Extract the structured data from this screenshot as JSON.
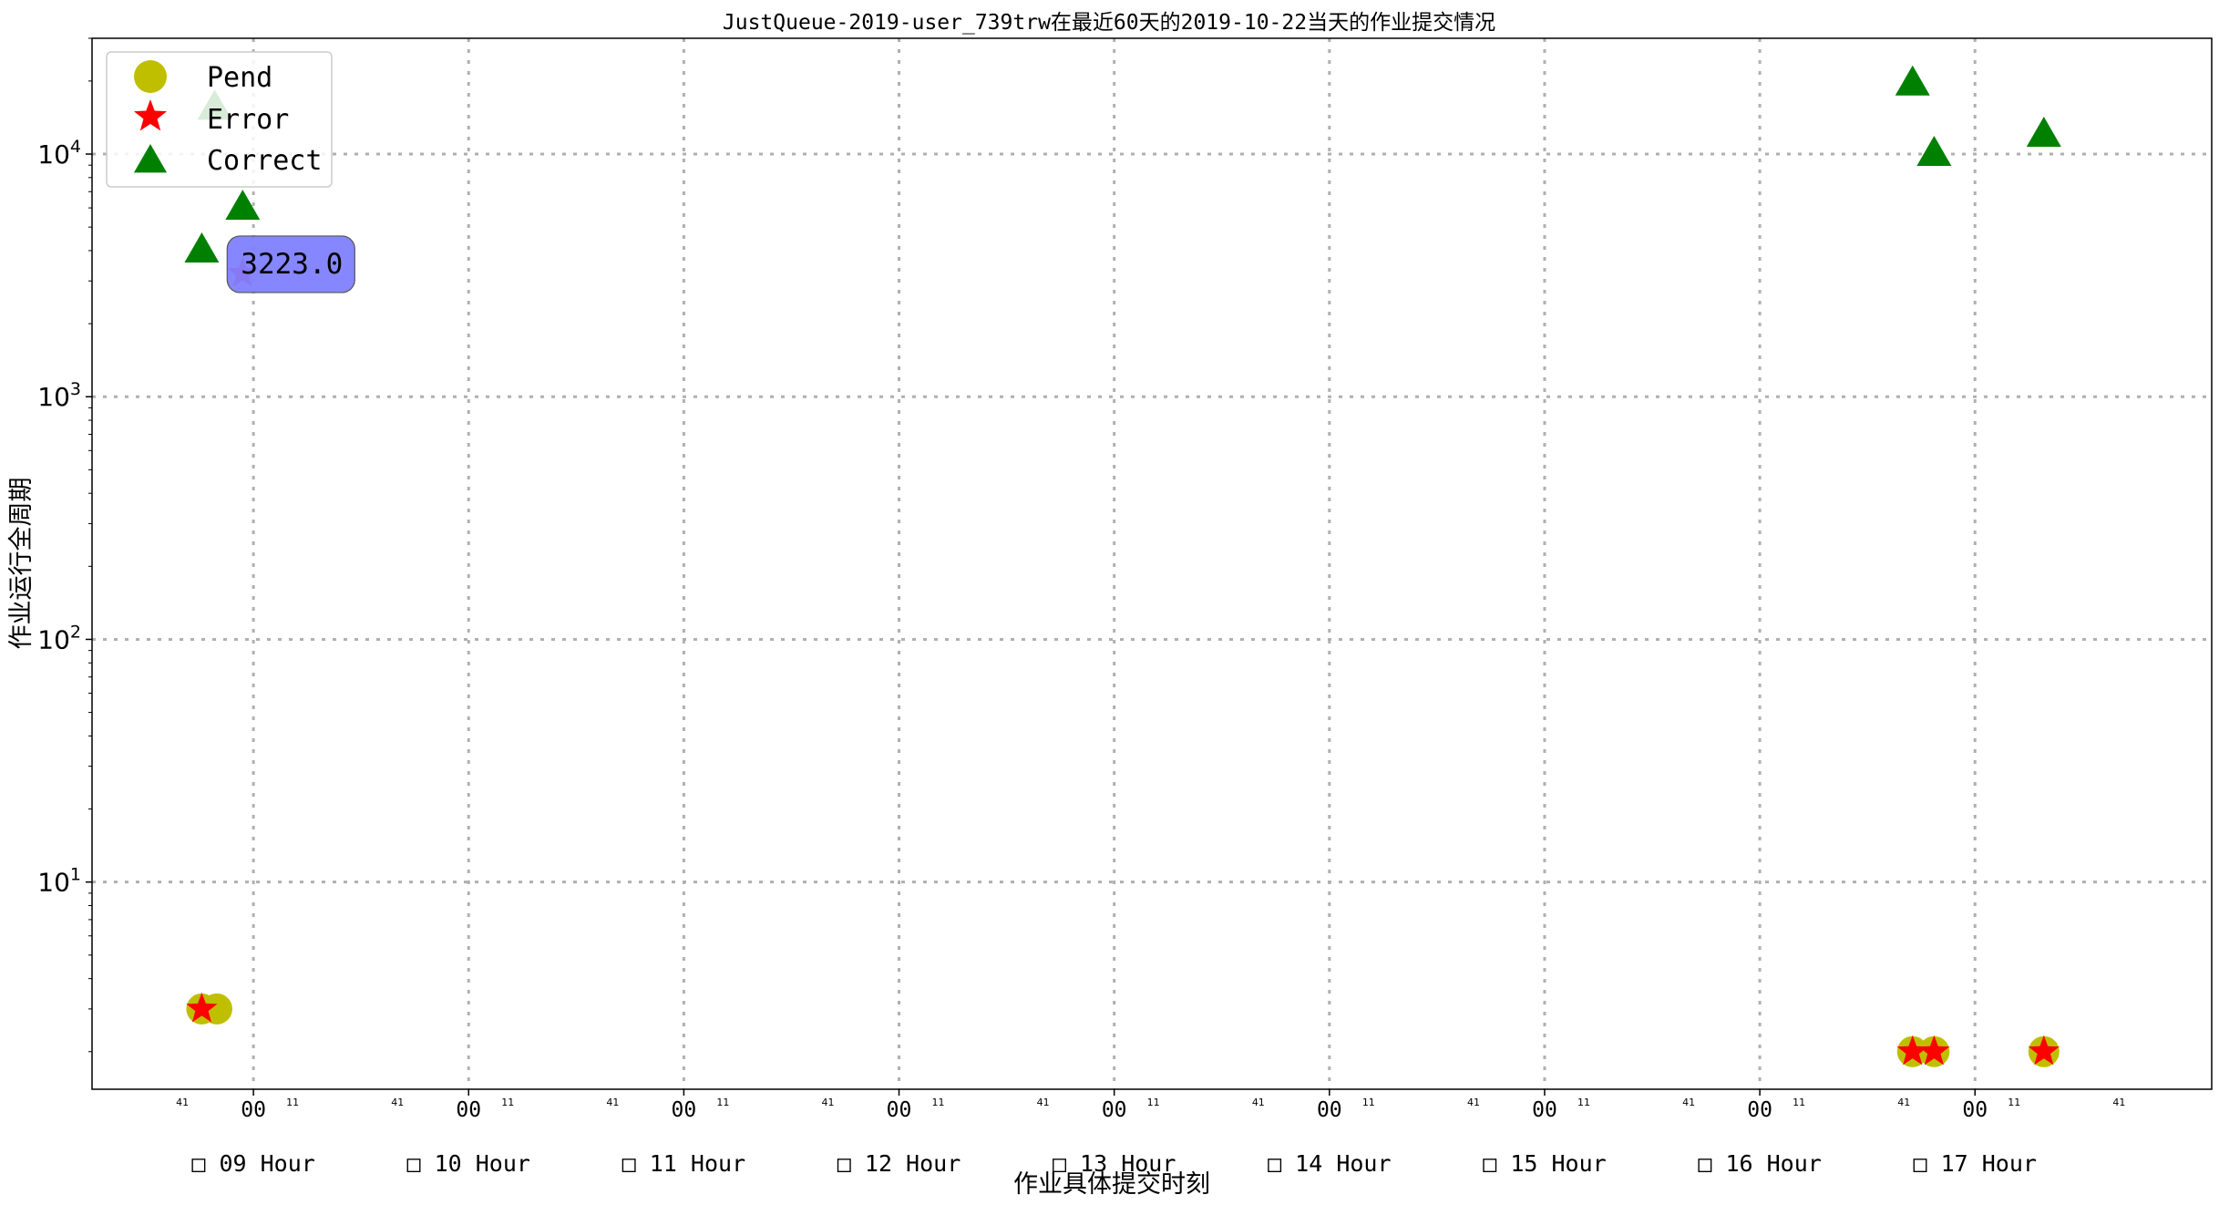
{
  "chart_data": {
    "type": "scatter",
    "title": "JustQueue-2019-user_739trw在最近60天的2019-10-22当天的作业提交情况",
    "xlabel": "作业具体提交时刻",
    "ylabel": "作业运行全周期",
    "yscale": "log",
    "ylim": [
      1.4,
      30000
    ],
    "xlim_hours": [
      8.25,
      18.1
    ],
    "grid": true,
    "legend_position": "top-left",
    "hour_labels": [
      "□ 09 Hour",
      "□ 10 Hour",
      "□ 11 Hour",
      "□ 12 Hour",
      "□ 13 Hour",
      "□ 14 Hour",
      "□ 15 Hour",
      "□ 16 Hour",
      "□ 17 Hour"
    ],
    "hour_centers": [
      9,
      10,
      11,
      12,
      13,
      14,
      15,
      16,
      17
    ],
    "minor_tick_text": {
      "center": "00",
      "left": "41",
      "right": "11"
    },
    "series": [
      {
        "name": "Pend",
        "marker": "circle",
        "color": "#bfbf00",
        "points": [
          [
            8.76,
            3
          ],
          [
            8.83,
            3
          ],
          [
            16.71,
            2
          ],
          [
            16.81,
            2
          ],
          [
            17.32,
            2
          ]
        ]
      },
      {
        "name": "Error",
        "marker": "star",
        "color": "#ff0000",
        "points": [
          [
            8.76,
            3
          ],
          [
            8.95,
            3223
          ],
          [
            16.71,
            2
          ],
          [
            16.81,
            2
          ],
          [
            17.32,
            2
          ]
        ]
      },
      {
        "name": "Correct",
        "marker": "triangle",
        "color": "#008000",
        "points": [
          [
            8.76,
            4000
          ],
          [
            8.82,
            15500
          ],
          [
            8.95,
            6000
          ],
          [
            16.71,
            19500
          ],
          [
            16.81,
            10000
          ],
          [
            17.32,
            12000
          ]
        ]
      }
    ],
    "annotation": {
      "text": "3223.0",
      "x": 8.95,
      "y": 3223,
      "bg_color": "#7f7fff"
    }
  }
}
